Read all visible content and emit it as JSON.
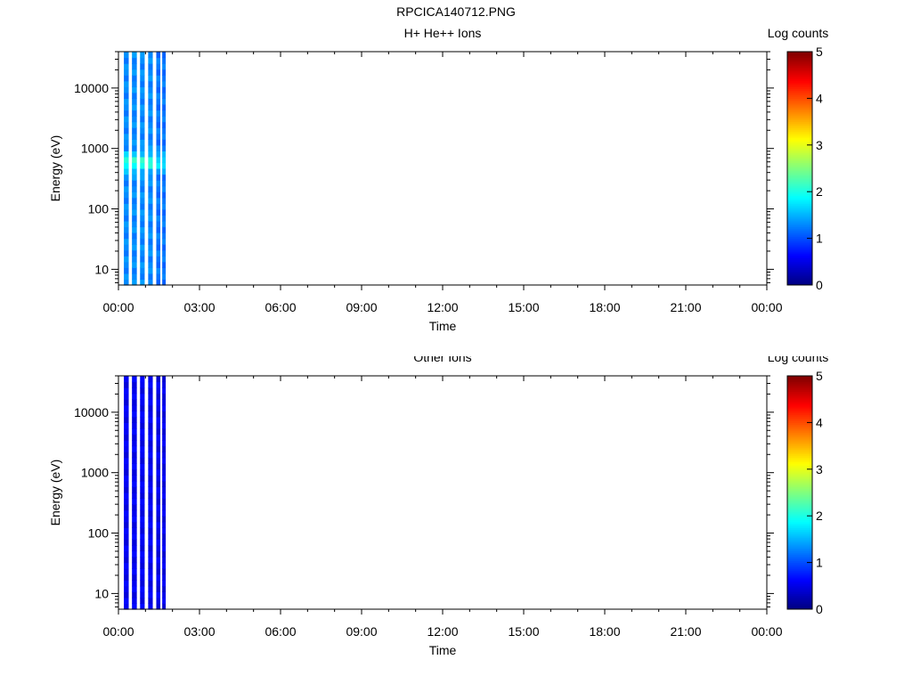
{
  "figure_title": "RPCICA140712.PNG",
  "colors": {
    "jet": [
      "#00007f",
      "#0000ff",
      "#007fff",
      "#00ffff",
      "#7fff7f",
      "#ffff00",
      "#ff7f00",
      "#ff0000",
      "#7f0000"
    ],
    "axis": "#000000",
    "background": "#ffffff"
  },
  "chart_data": [
    {
      "type": "heatmap",
      "title": "H+ He++ Ions",
      "xlabel": "Time",
      "ylabel": "Energy (eV)",
      "xticks": [
        "00:00",
        "03:00",
        "06:00",
        "09:00",
        "12:00",
        "15:00",
        "18:00",
        "21:00",
        "00:00"
      ],
      "xlim_hours": [
        0,
        24
      ],
      "ylim": [
        5.5,
        40000
      ],
      "yscale": "log",
      "yticks": [
        "10",
        "100",
        "1000",
        "10000"
      ],
      "colorbar": {
        "label": "Log counts",
        "range": [
          0,
          5
        ],
        "ticks": [
          "0",
          "1",
          "2",
          "3",
          "4",
          "5"
        ]
      },
      "data_coverage_hours": [
        0.2,
        1.75
      ],
      "stripes": [
        {
          "start_hour": 0.2,
          "end_hour": 0.38,
          "log_counts": 1.3,
          "peak_energy": 600,
          "peak_log_counts": 2.1
        },
        {
          "start_hour": 0.5,
          "end_hour": 0.68,
          "log_counts": 1.3,
          "peak_energy": 600,
          "peak_log_counts": 2.1
        },
        {
          "start_hour": 0.8,
          "end_hour": 0.97,
          "log_counts": 1.3,
          "peak_energy": 600,
          "peak_log_counts": 2.1
        },
        {
          "start_hour": 1.1,
          "end_hour": 1.27,
          "log_counts": 1.3,
          "peak_energy": 600,
          "peak_log_counts": 2.1
        },
        {
          "start_hour": 1.4,
          "end_hour": 1.55,
          "log_counts": 1.2,
          "peak_energy": 600,
          "peak_log_counts": 1.8
        },
        {
          "start_hour": 1.62,
          "end_hour": 1.75,
          "log_counts": 1.2,
          "peak_energy": 600,
          "peak_log_counts": 1.8
        }
      ]
    },
    {
      "type": "heatmap",
      "title": "Other Ions",
      "xlabel": "Time",
      "ylabel": "Energy (eV)",
      "xticks": [
        "00:00",
        "03:00",
        "06:00",
        "09:00",
        "12:00",
        "15:00",
        "18:00",
        "21:00",
        "00:00"
      ],
      "xlim_hours": [
        0,
        24
      ],
      "ylim": [
        5.5,
        40000
      ],
      "yscale": "log",
      "yticks": [
        "10",
        "100",
        "1000",
        "10000"
      ],
      "colorbar": {
        "label": "Log counts",
        "range": [
          0,
          5
        ],
        "ticks": [
          "0",
          "1",
          "2",
          "3",
          "4",
          "5"
        ]
      },
      "data_coverage_hours": [
        0.2,
        1.75
      ],
      "stripes": [
        {
          "start_hour": 0.2,
          "end_hour": 0.38,
          "log_counts": 0.55,
          "peak_energy": 0,
          "peak_log_counts": 0.55
        },
        {
          "start_hour": 0.5,
          "end_hour": 0.68,
          "log_counts": 0.55,
          "peak_energy": 0,
          "peak_log_counts": 0.55
        },
        {
          "start_hour": 0.8,
          "end_hour": 0.97,
          "log_counts": 0.55,
          "peak_energy": 0,
          "peak_log_counts": 0.55
        },
        {
          "start_hour": 1.1,
          "end_hour": 1.27,
          "log_counts": 0.55,
          "peak_energy": 0,
          "peak_log_counts": 0.55
        },
        {
          "start_hour": 1.4,
          "end_hour": 1.55,
          "log_counts": 0.5,
          "peak_energy": 0,
          "peak_log_counts": 0.5
        },
        {
          "start_hour": 1.62,
          "end_hour": 1.75,
          "log_counts": 0.5,
          "peak_energy": 0,
          "peak_log_counts": 0.5
        }
      ]
    }
  ]
}
